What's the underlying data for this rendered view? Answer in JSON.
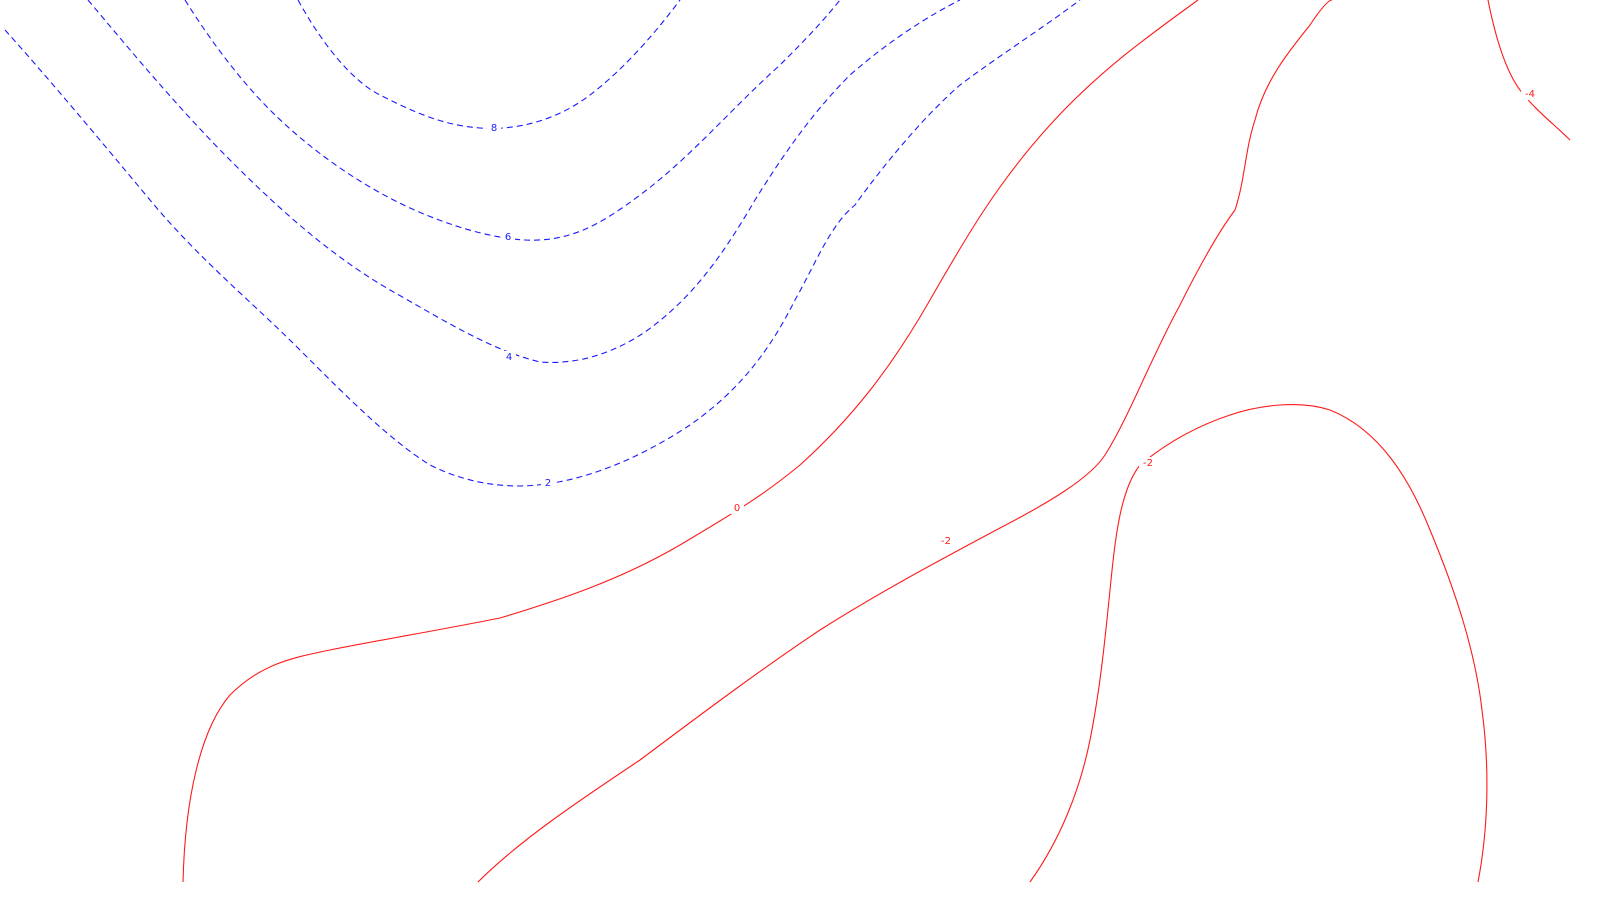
{
  "colors": {
    "background": "#ffffff",
    "positive_contour": "#1a1aff",
    "negative_contour": "#ff1a1a"
  },
  "contours": [
    {
      "id": "c-pos-8-a",
      "value": 8,
      "sign": "positive",
      "style": "dashed",
      "label": "8"
    },
    {
      "id": "c-pos-6-a",
      "value": 6,
      "sign": "positive",
      "style": "dashed",
      "label": "6"
    },
    {
      "id": "c-pos-4-a",
      "value": 4,
      "sign": "positive",
      "style": "dashed",
      "label": "4"
    },
    {
      "id": "c-pos-2-a",
      "value": 2,
      "sign": "positive",
      "style": "dashed",
      "label": "2"
    },
    {
      "id": "c-zero-a",
      "value": 0,
      "sign": "negative",
      "style": "solid",
      "label": "0"
    },
    {
      "id": "c-neg-2-a",
      "value": -2,
      "sign": "negative",
      "style": "solid",
      "label": "-2"
    },
    {
      "id": "c-neg-2-b",
      "value": -2,
      "sign": "negative",
      "style": "solid",
      "label": "-2"
    },
    {
      "id": "c-neg-4-a",
      "value": -4,
      "sign": "negative",
      "style": "solid",
      "label": "-4"
    }
  ]
}
